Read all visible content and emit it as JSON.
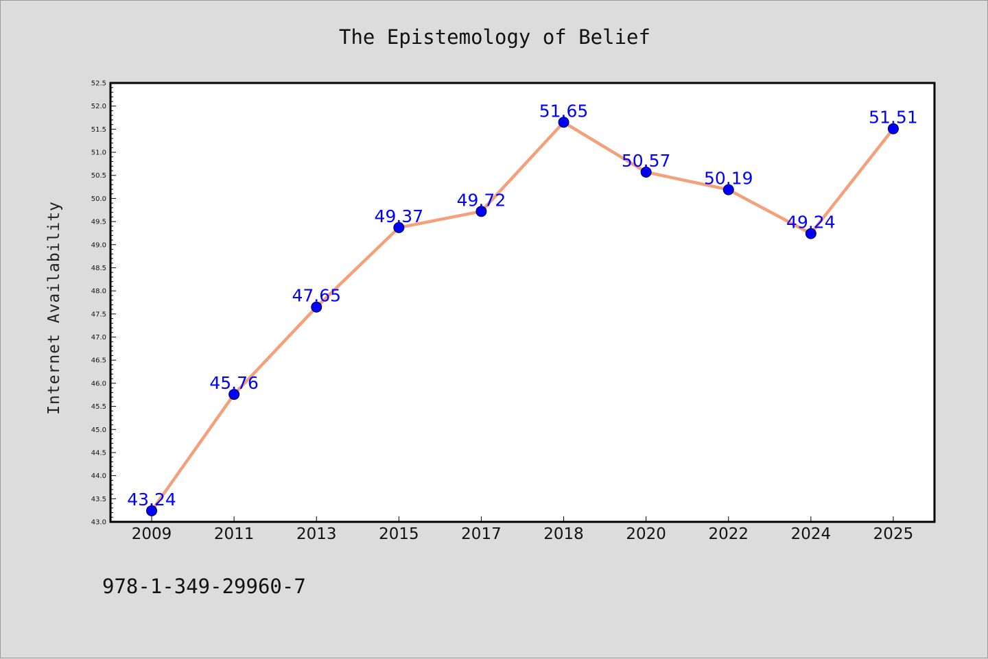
{
  "chart_data": {
    "type": "line",
    "title": "The Epistemology of Belief",
    "xlabel": "",
    "ylabel": "Internet Availability",
    "categories": [
      "2009",
      "2011",
      "2013",
      "2015",
      "2017",
      "2018",
      "2020",
      "2022",
      "2024",
      "2025"
    ],
    "series": [
      {
        "values": [
          43.24,
          45.76,
          47.65,
          49.37,
          49.72,
          51.65,
          50.57,
          50.19,
          49.24,
          51.51
        ],
        "line_color": "#f4a07a",
        "marker_color": "#0000ff"
      }
    ],
    "ylim": [
      43.0,
      52.5
    ],
    "yticks": [
      "43.0",
      "43.5",
      "44.0",
      "44.5",
      "45.0",
      "45.5",
      "46.0",
      "46.5",
      "47.0",
      "47.5",
      "48.0",
      "48.5",
      "49.0",
      "49.5",
      "50.0",
      "50.5",
      "51.0",
      "51.5",
      "52.0",
      "52.5"
    ],
    "data_labels": [
      "43.24",
      "45.76",
      "47.65",
      "49.37",
      "49.72",
      "51.65",
      "50.57",
      "50.19",
      "49.24",
      "51.51"
    ],
    "grid": false,
    "legend": "none",
    "label_color": "#0000ff",
    "background": "#dcdcdc",
    "plot_background": "#ffffff"
  },
  "footer": {
    "isbn": "978-1-349-29960-7"
  }
}
